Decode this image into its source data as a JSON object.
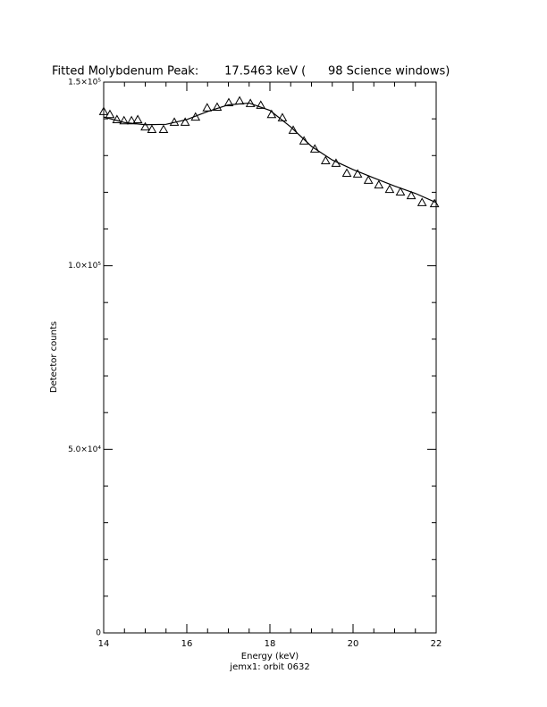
{
  "chart_data": {
    "type": "line",
    "title": "Fitted Molybdenum Peak:       17.5463 keV (      98 Science windows)",
    "xlabel": "Energy (keV)",
    "subtitle": "jemx1: orbit 0632",
    "ylabel": "Detector counts",
    "xlim": [
      14,
      22
    ],
    "ylim": [
      0,
      150000
    ],
    "xticks": [
      14,
      16,
      18,
      20,
      22
    ],
    "xminorticks": [
      14.5,
      15,
      15.5,
      16.5,
      17,
      17.5,
      18.5,
      19,
      19.5,
      20.5,
      21,
      21.5
    ],
    "yticks": [
      0,
      {
        "value": 50000,
        "label": "5.0×10⁴"
      },
      {
        "value": 100000,
        "label": "1.0×10⁵"
      },
      {
        "value": 150000,
        "label": "1.5×10⁵"
      }
    ],
    "yminorticks": [
      10000,
      20000,
      30000,
      40000,
      60000,
      70000,
      80000,
      90000,
      110000,
      120000,
      130000,
      140000
    ],
    "series": [
      {
        "marker": "triangle",
        "color": "#000000",
        "x": [
          14.0,
          14.15,
          14.32,
          14.49,
          14.67,
          14.82,
          15.0,
          15.16,
          15.44,
          15.7,
          15.96,
          16.21,
          16.49,
          16.73,
          17.01,
          17.27,
          17.53,
          17.78,
          18.04,
          18.3,
          18.56,
          18.82,
          19.08,
          19.34,
          19.59,
          19.85,
          20.11,
          20.37,
          20.62,
          20.88,
          21.14,
          21.4,
          21.66,
          21.96
        ],
        "values": [
          142000,
          141200,
          139800,
          139500,
          139500,
          139800,
          137800,
          137100,
          137100,
          139100,
          139100,
          140500,
          143000,
          143200,
          144400,
          144900,
          144200,
          143700,
          141200,
          140300,
          136900,
          134000,
          131800,
          128600,
          127900,
          125200,
          125000,
          123300,
          122000,
          120800,
          120100,
          119100,
          117200,
          116900
        ]
      },
      {
        "marker": "none",
        "color": "#000000",
        "x": [
          14.0,
          14.5,
          15.0,
          15.5,
          16.0,
          16.5,
          17.0,
          17.5,
          18.0,
          18.5,
          19.0,
          19.5,
          20.0,
          20.5,
          21.0,
          21.5,
          22.0
        ],
        "values": [
          140500,
          139000,
          138400,
          138500,
          139800,
          142000,
          143800,
          144300,
          142300,
          137800,
          132500,
          128800,
          126200,
          123900,
          121700,
          119700,
          117200
        ]
      }
    ]
  }
}
